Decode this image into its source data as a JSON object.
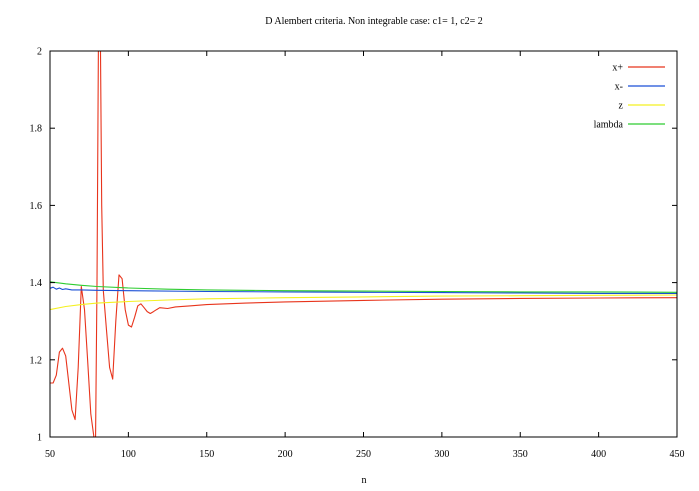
{
  "chart_data": {
    "type": "line",
    "title": "D Alembert criteria. Non integrable case: c1= 1, c2= 2",
    "xlabel": "n",
    "ylabel": "",
    "xlim": [
      50,
      450
    ],
    "ylim": [
      1,
      2
    ],
    "xticks": [
      50,
      100,
      150,
      200,
      250,
      300,
      350,
      400,
      450
    ],
    "yticks": [
      1,
      1.2,
      1.4,
      1.6,
      1.8,
      2
    ],
    "ytick_labels": [
      "1",
      "1.2",
      "1.4",
      "1.6",
      "1.8",
      "2"
    ],
    "grid": false,
    "legend_position": "top-right",
    "series": [
      {
        "name": "x+",
        "color": "#e8341c",
        "x": [
          50,
          52,
          54,
          56,
          58,
          60,
          62,
          64,
          66,
          68,
          70,
          72,
          74,
          76,
          78,
          79,
          80,
          81,
          82,
          83,
          84,
          86,
          88,
          90,
          92,
          94,
          96,
          98,
          100,
          102,
          104,
          106,
          108,
          110,
          112,
          114,
          116,
          118,
          120,
          125,
          130,
          140,
          150,
          175,
          200,
          250,
          300,
          350,
          400,
          450
        ],
        "y": [
          1.14,
          1.14,
          1.16,
          1.22,
          1.23,
          1.21,
          1.14,
          1.07,
          1.045,
          1.18,
          1.39,
          1.33,
          1.2,
          1.06,
          1.0,
          0.98,
          1.4,
          2.1,
          2.1,
          1.6,
          1.38,
          1.28,
          1.18,
          1.15,
          1.3,
          1.42,
          1.41,
          1.33,
          1.29,
          1.285,
          1.31,
          1.34,
          1.345,
          1.335,
          1.325,
          1.32,
          1.325,
          1.33,
          1.335,
          1.333,
          1.337,
          1.34,
          1.343,
          1.347,
          1.35,
          1.354,
          1.357,
          1.359,
          1.36,
          1.361
        ]
      },
      {
        "name": "x-",
        "color": "#1a4fd6",
        "x": [
          50,
          52,
          54,
          56,
          58,
          60,
          64,
          70,
          80,
          100,
          150,
          200,
          250,
          300,
          350,
          400,
          450
        ],
        "y": [
          1.385,
          1.388,
          1.383,
          1.386,
          1.382,
          1.384,
          1.381,
          1.381,
          1.38,
          1.379,
          1.377,
          1.376,
          1.375,
          1.374,
          1.373,
          1.372,
          1.372
        ]
      },
      {
        "name": "z",
        "color": "#f4f020",
        "x": [
          50,
          60,
          70,
          80,
          100,
          125,
          150,
          200,
          250,
          300,
          350,
          400,
          450
        ],
        "y": [
          1.33,
          1.338,
          1.343,
          1.347,
          1.351,
          1.355,
          1.358,
          1.361,
          1.363,
          1.365,
          1.366,
          1.367,
          1.368
        ]
      },
      {
        "name": "lambda",
        "color": "#2ecc30",
        "x": [
          50,
          60,
          70,
          80,
          100,
          125,
          150,
          200,
          250,
          300,
          350,
          400,
          450
        ],
        "y": [
          1.402,
          1.397,
          1.393,
          1.39,
          1.386,
          1.383,
          1.381,
          1.379,
          1.378,
          1.377,
          1.376,
          1.376,
          1.375
        ]
      }
    ]
  }
}
